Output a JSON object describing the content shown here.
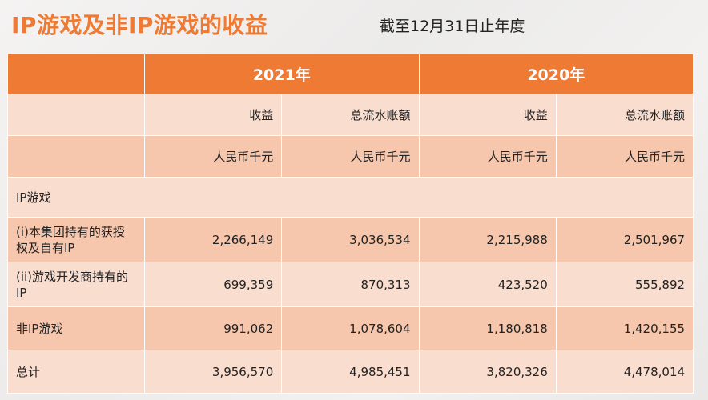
{
  "title": "IP游戏及非IP游戏的收益",
  "subtitle": "截至12月31日止年度",
  "years": [
    "2021年",
    "2020年"
  ],
  "col_headers": [
    "收益",
    "总流水账额",
    "收益",
    "总流水账额"
  ],
  "unit_headers": [
    "人民币千元",
    "人民币千元",
    "人民币千元",
    "人民币千元"
  ],
  "section_label": "IP游戏",
  "rows": [
    {
      "label": "(i)本集团持有的获授权及自有IP",
      "values": [
        "2,266,149",
        "3,036,534",
        "2,215,988",
        "2,501,967"
      ]
    },
    {
      "label": "(ii)游戏开发商持有的IP",
      "values": [
        "699,359",
        "870,313",
        "423,520",
        "555,892"
      ]
    },
    {
      "label": "非IP游戏",
      "values": [
        "991,062",
        "1,078,604",
        "1,180,818",
        "1,420,155"
      ]
    },
    {
      "label": "总计",
      "values": [
        "3,956,570",
        "4,985,451",
        "3,820,326",
        "4,478,014"
      ]
    }
  ]
}
